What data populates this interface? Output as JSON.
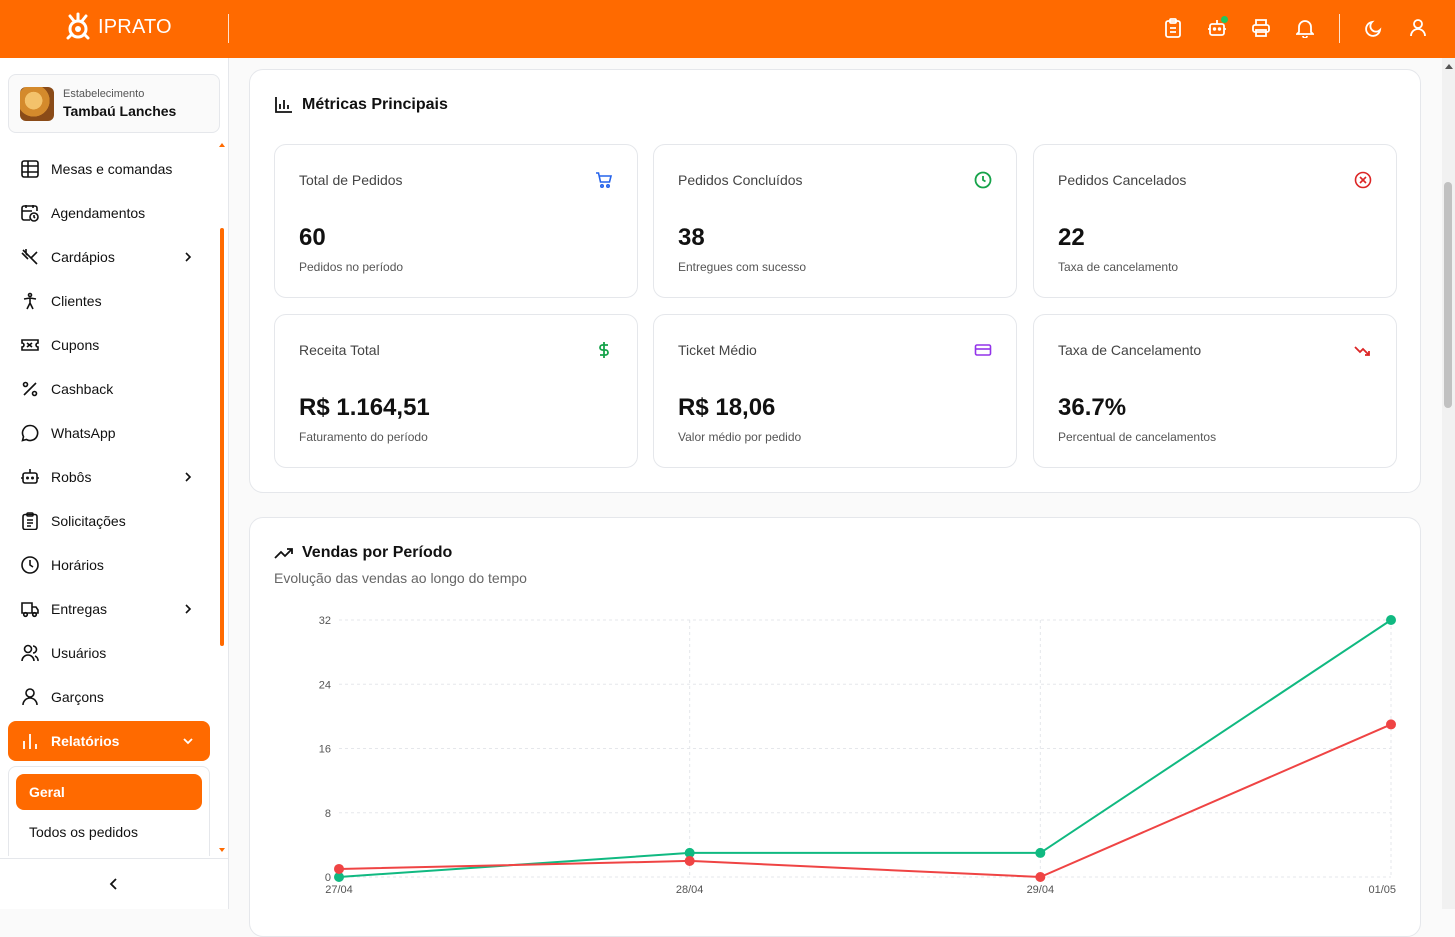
{
  "header": {
    "brand": "IPRATO",
    "icons": [
      "clipboard-icon",
      "robot-icon",
      "printer-icon",
      "bell-icon",
      "moon-icon",
      "user-icon"
    ],
    "accent": "#ff6a00"
  },
  "establishment": {
    "label": "Estabelecimento",
    "name": "Tambaú Lanches"
  },
  "sidebar": {
    "items": [
      {
        "label": "Mesas e comandas",
        "icon": "table-icon"
      },
      {
        "label": "Agendamentos",
        "icon": "calendar-clock-icon"
      },
      {
        "label": "Cardápios",
        "icon": "utensils-icon",
        "expandable": true
      },
      {
        "label": "Clientes",
        "icon": "person-icon"
      },
      {
        "label": "Cupons",
        "icon": "ticket-icon"
      },
      {
        "label": "Cashback",
        "icon": "percent-icon"
      },
      {
        "label": "WhatsApp",
        "icon": "chat-icon"
      },
      {
        "label": "Robôs",
        "icon": "robot-icon",
        "expandable": true
      },
      {
        "label": "Solicitações",
        "icon": "clipboard-list-icon"
      },
      {
        "label": "Horários",
        "icon": "clock-icon"
      },
      {
        "label": "Entregas",
        "icon": "truck-icon",
        "expandable": true
      },
      {
        "label": "Usuários",
        "icon": "users-icon"
      },
      {
        "label": "Garçons",
        "icon": "user-icon"
      },
      {
        "label": "Relatórios",
        "icon": "bar-chart-icon",
        "expandable": true,
        "active": true
      }
    ],
    "submenu": [
      {
        "label": "Geral",
        "active": true
      },
      {
        "label": "Todos os pedidos"
      }
    ]
  },
  "metrics": {
    "title": "Métricas Principais",
    "cards": [
      {
        "title": "Total de Pedidos",
        "value": "60",
        "sub": "Pedidos no período",
        "icon": "cart-icon",
        "color": "#2563eb"
      },
      {
        "title": "Pedidos Concluídos",
        "value": "38",
        "sub": "Entregues com sucesso",
        "icon": "clock-icon",
        "color": "#16a34a"
      },
      {
        "title": "Pedidos Cancelados",
        "value": "22",
        "sub": "Taxa de cancelamento",
        "icon": "x-circle-icon",
        "color": "#dc2626"
      },
      {
        "title": "Receita Total",
        "value": "R$ 1.164,51",
        "sub": "Faturamento do período",
        "icon": "dollar-icon",
        "color": "#16a34a"
      },
      {
        "title": "Ticket Médio",
        "value": "R$ 18,06",
        "sub": "Valor médio por pedido",
        "icon": "credit-card-icon",
        "color": "#9333ea"
      },
      {
        "title": "Taxa de Cancelamento",
        "value": "36.7%",
        "sub": "Percentual de cancelamentos",
        "icon": "trending-down-icon",
        "color": "#dc2626"
      }
    ]
  },
  "sales": {
    "title": "Vendas por Período",
    "subtitle": "Evolução das vendas ao longo do tempo"
  },
  "chart_data": {
    "type": "line",
    "categories": [
      "27/04",
      "28/04",
      "29/04",
      "01/05"
    ],
    "series": [
      {
        "values": [
          0,
          3,
          3,
          32
        ],
        "color": "#10b981"
      },
      {
        "values": [
          1,
          2,
          0,
          19
        ],
        "color": "#ef4444"
      }
    ],
    "yticks": [
      0,
      8,
      16,
      24,
      32
    ],
    "ylim": [
      0,
      32
    ],
    "grid": true
  }
}
